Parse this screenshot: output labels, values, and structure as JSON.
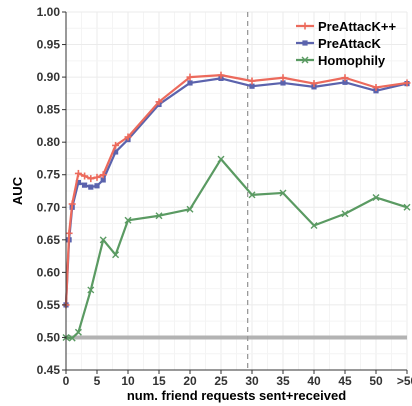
{
  "chart_data": {
    "type": "line",
    "title": "",
    "xlabel": "num. friend requests sent+received",
    "ylabel": "AUC",
    "xlim": [
      0,
      55
    ],
    "ylim": [
      0.45,
      1.0
    ],
    "grid": true,
    "legend_position": "top-right",
    "x_ticks": [
      0,
      5,
      10,
      15,
      20,
      25,
      30,
      35,
      40,
      45,
      50,
      55
    ],
    "x_tick_labels": [
      "0",
      "5",
      "10",
      "15",
      "20",
      "25",
      "30",
      "35",
      "40",
      "45",
      "50",
      ">50"
    ],
    "y_ticks": [
      0.45,
      0.5,
      0.55,
      0.6,
      0.65,
      0.7,
      0.75,
      0.8,
      0.85,
      0.9,
      0.95,
      1.0
    ],
    "y_tick_labels": [
      "0.45",
      "0.50",
      "0.55",
      "0.60",
      "0.65",
      "0.70",
      "0.75",
      "0.80",
      "0.85",
      "0.90",
      "0.95",
      "1.00"
    ],
    "baseline_y": 0.5,
    "vline_x": 29.3,
    "series": [
      {
        "name": "PreAttacK++",
        "color": "#ec6a5c",
        "marker": "plus",
        "points": [
          [
            0,
            0.55
          ],
          [
            0.5,
            0.66
          ],
          [
            1,
            0.705
          ],
          [
            2,
            0.752
          ],
          [
            3,
            0.748
          ],
          [
            4,
            0.744
          ],
          [
            5,
            0.746
          ],
          [
            6,
            0.75
          ],
          [
            8,
            0.795
          ],
          [
            10,
            0.808
          ],
          [
            15,
            0.862
          ],
          [
            20,
            0.9
          ],
          [
            25,
            0.903
          ],
          [
            30,
            0.894
          ],
          [
            35,
            0.899
          ],
          [
            40,
            0.89
          ],
          [
            45,
            0.899
          ],
          [
            50,
            0.884
          ],
          [
            55,
            0.891
          ]
        ]
      },
      {
        "name": "PreAttacK",
        "color": "#5b63ad",
        "marker": "square",
        "points": [
          [
            0,
            0.55
          ],
          [
            0.5,
            0.65
          ],
          [
            1,
            0.7
          ],
          [
            2,
            0.738
          ],
          [
            3,
            0.734
          ],
          [
            4,
            0.731
          ],
          [
            5,
            0.733
          ],
          [
            6,
            0.742
          ],
          [
            8,
            0.785
          ],
          [
            10,
            0.804
          ],
          [
            15,
            0.858
          ],
          [
            20,
            0.891
          ],
          [
            25,
            0.898
          ],
          [
            30,
            0.886
          ],
          [
            35,
            0.891
          ],
          [
            40,
            0.885
          ],
          [
            45,
            0.892
          ],
          [
            50,
            0.879
          ],
          [
            55,
            0.89
          ]
        ]
      },
      {
        "name": "Homophily",
        "color": "#5a9a62",
        "marker": "x",
        "points": [
          [
            0,
            0.5
          ],
          [
            1,
            0.499
          ],
          [
            2,
            0.508
          ],
          [
            4,
            0.573
          ],
          [
            6,
            0.65
          ],
          [
            8,
            0.627
          ],
          [
            10,
            0.68
          ],
          [
            15,
            0.687
          ],
          [
            20,
            0.697
          ],
          [
            25,
            0.774
          ],
          [
            30,
            0.719
          ],
          [
            35,
            0.722
          ],
          [
            40,
            0.672
          ],
          [
            45,
            0.69
          ],
          [
            50,
            0.715
          ],
          [
            55,
            0.7
          ]
        ]
      }
    ]
  }
}
